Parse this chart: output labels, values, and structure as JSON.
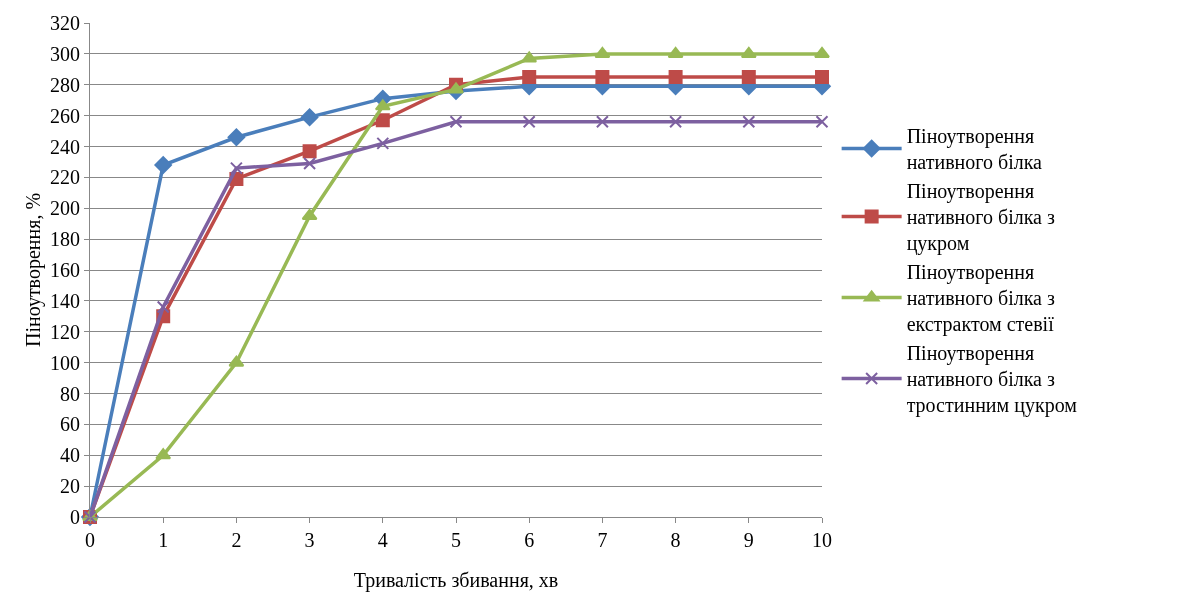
{
  "chart_data": {
    "type": "line",
    "xlabel": "Тривалість збивання, хв",
    "ylabel": "Піноутворення, %",
    "x": [
      0,
      1,
      2,
      3,
      4,
      5,
      6,
      7,
      8,
      9,
      10
    ],
    "series": [
      {
        "name": "Піноутворення нативного білка",
        "color": "#4a7ebb",
        "marker": "diamond",
        "values": [
          0,
          228,
          246,
          259,
          271,
          276,
          279,
          279,
          279,
          279,
          279
        ]
      },
      {
        "name": "Піноутворення нативного білка з цукром",
        "color": "#be4b48",
        "marker": "square",
        "values": [
          0,
          130,
          219,
          237,
          257,
          280,
          285,
          285,
          285,
          285,
          285
        ]
      },
      {
        "name": "Піноутворення нативного білка з екстрактом стевії",
        "color": "#98b954",
        "marker": "triangle",
        "values": [
          0,
          40,
          100,
          195,
          266,
          277,
          297,
          300,
          300,
          300,
          300
        ]
      },
      {
        "name": "Піноутворення нативного білка з тростинним цукром",
        "color": "#7d60a0",
        "marker": "cross",
        "values": [
          0,
          136,
          226,
          229,
          242,
          256,
          256,
          256,
          256,
          256,
          256
        ]
      }
    ],
    "xlim": [
      0,
      10
    ],
    "xticks": [
      0,
      1,
      2,
      3,
      4,
      5,
      6,
      7,
      8,
      9,
      10
    ],
    "ylim": [
      0,
      320
    ],
    "yticks": [
      0,
      20,
      40,
      60,
      80,
      100,
      120,
      140,
      160,
      180,
      200,
      220,
      240,
      260,
      280,
      300,
      320
    ],
    "grid": "y",
    "legend": "right",
    "line_style": "solid"
  }
}
